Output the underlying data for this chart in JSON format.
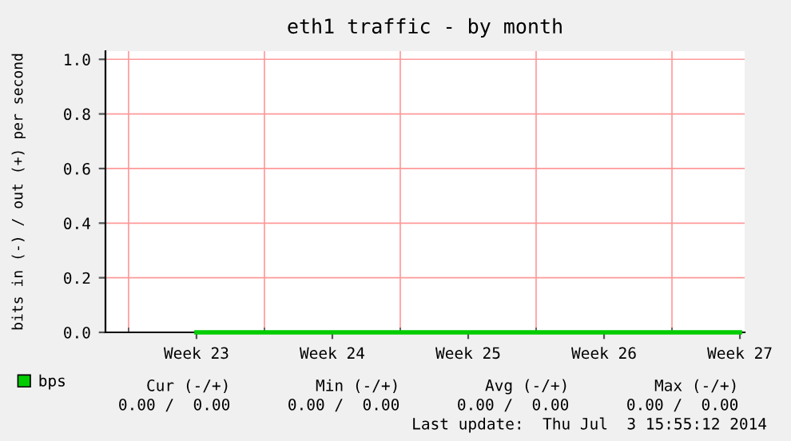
{
  "chart_data": {
    "type": "line",
    "title": "eth1 traffic - by month",
    "ylabel": "bits in (-) / out (+) per second",
    "categories": [
      "Week 23",
      "Week 24",
      "Week 25",
      "Week 26",
      "Week 27"
    ],
    "ylim": [
      0,
      1.03
    ],
    "yticks": [
      {
        "value": 0,
        "label": "0.0"
      },
      {
        "value": 0.2,
        "label": "0.2"
      },
      {
        "value": 0.4,
        "label": "0.4"
      },
      {
        "value": 0.6,
        "label": "0.6"
      },
      {
        "value": 0.8,
        "label": "0.8"
      },
      {
        "value": 1.0,
        "label": "1.0"
      }
    ],
    "grid": true,
    "legend": "bottom left",
    "series": [
      {
        "name": "bps",
        "color": "#00cc00",
        "values": [
          0,
          0,
          0,
          0,
          0
        ]
      }
    ],
    "annotations": [
      "Cur (-/+)",
      "Min (-/+)",
      "Avg (-/+)",
      "Max (-/+)",
      "0.00 /  0.00",
      "0.00 /  0.00",
      "0.00 /  0.00",
      "0.00 /  0.00",
      "Last update:  Thu Jul  3 15:55:12 2014"
    ]
  }
}
